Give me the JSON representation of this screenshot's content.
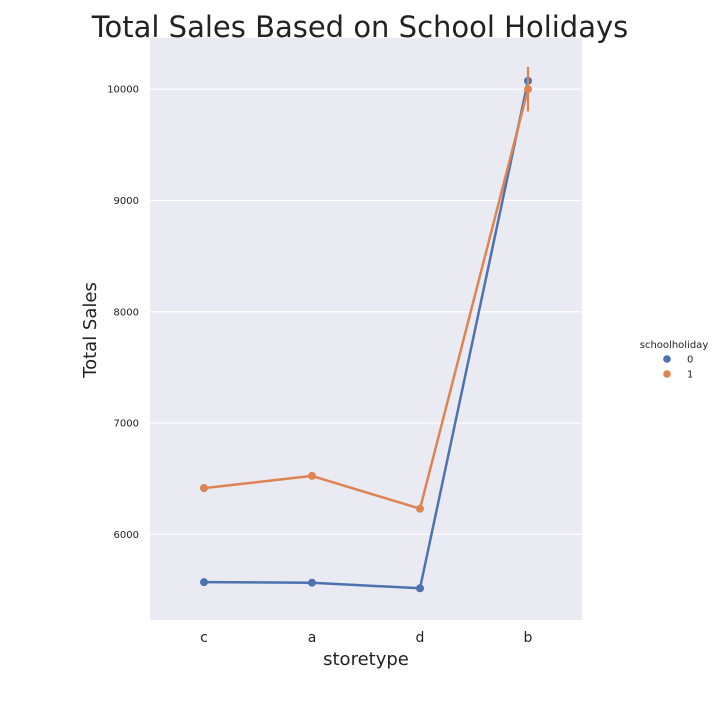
{
  "chart_data": {
    "type": "line",
    "title": "Total Sales Based on School Holidays",
    "xlabel": "storetype",
    "ylabel": "Total Sales",
    "categories": [
      "c",
      "a",
      "d",
      "b"
    ],
    "ylim": [
      5230,
      10460
    ],
    "yticks": [
      6000,
      7000,
      8000,
      9000,
      10000
    ],
    "grid": true,
    "legend": {
      "title": "schoolholiday",
      "position": "right"
    },
    "series": [
      {
        "name": "0",
        "color": "#4c72b0",
        "values": [
          5570,
          5565,
          5515,
          10075
        ],
        "err_low": [
          5560,
          5555,
          5505,
          10055
        ],
        "err_high": [
          5580,
          5575,
          5525,
          10095
        ]
      },
      {
        "name": "1",
        "color": "#dd8452",
        "values": [
          6415,
          6525,
          6230,
          10000
        ],
        "err_low": [
          6380,
          6505,
          6210,
          9800
        ],
        "err_high": [
          6450,
          6545,
          6250,
          10200
        ]
      }
    ]
  }
}
